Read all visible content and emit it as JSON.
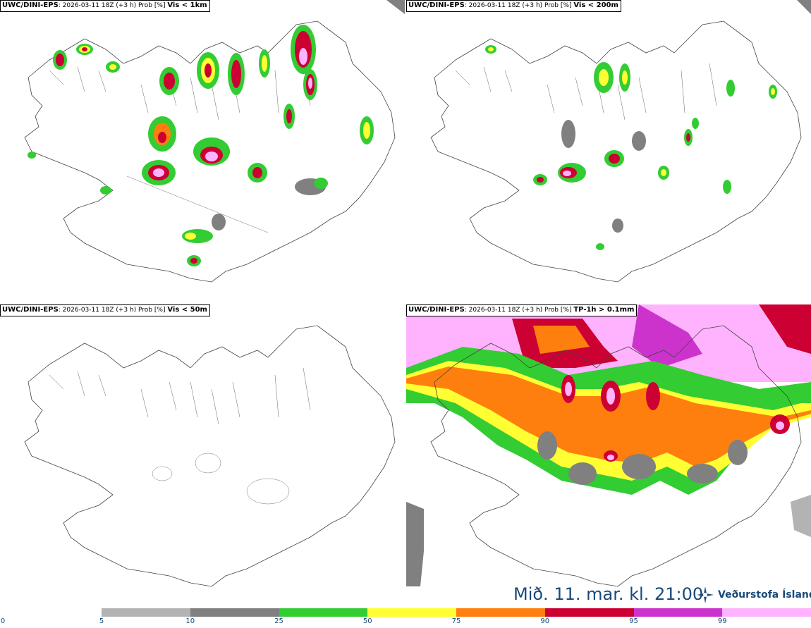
{
  "panels": [
    {
      "model": "UWC/DINI-EPS",
      "run": "2026-03-11 18Z (+3 h) Prob [%]",
      "param": "Vis < 1km"
    },
    {
      "model": "UWC/DINI-EPS",
      "run": "2026-03-11 18Z (+3 h) Prob [%]",
      "param": "Vis < 200m"
    },
    {
      "model": "UWC/DINI-EPS",
      "run": "2026-03-11 18Z (+3 h) Prob [%]",
      "param": "Vis < 50m"
    },
    {
      "model": "UWC/DINI-EPS",
      "run": "2026-03-11 18Z (+3 h) Prob [%]",
      "param": "TP-1h > 0.1mm"
    }
  ],
  "valid_time": "Mið. 11. mar. kl. 21:00",
  "logo_text": "Veðurstofa Íslands",
  "colorbar": {
    "ticks": [
      "0",
      "5",
      "10",
      "25",
      "50",
      "75",
      "90",
      "95",
      "99"
    ],
    "colors": [
      "#b3b3b3",
      "#808080",
      "#33cc33",
      "#ffff33",
      "#ff7f0e",
      "#cc0033",
      "#cc33cc",
      "#ffb3ff"
    ]
  }
}
